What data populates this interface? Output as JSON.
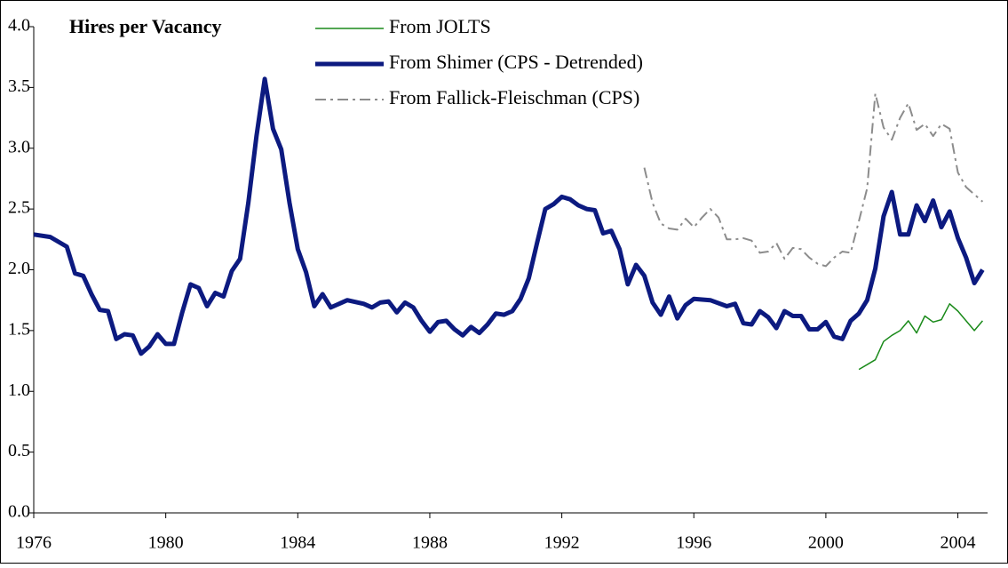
{
  "chart_data": {
    "type": "line",
    "title": "Hires per Vacancy",
    "xlim": [
      1976,
      2004.9
    ],
    "xticks": [
      1976,
      1980,
      1984,
      1988,
      1992,
      1996,
      2000,
      2004
    ],
    "ylim": [
      0,
      4
    ],
    "yticks": [
      {
        "value": 0,
        "label": "0.0"
      },
      {
        "value": 0.5,
        "label": "0.5"
      },
      {
        "value": 1,
        "label": "1.0"
      },
      {
        "value": 1.5,
        "label": "1.5"
      },
      {
        "value": 2,
        "label": "2.0"
      },
      {
        "value": 2.5,
        "label": "2.5"
      },
      {
        "value": 3,
        "label": "3.0"
      },
      {
        "value": 3.5,
        "label": "3.5"
      },
      {
        "value": 4,
        "label": "4.0"
      }
    ],
    "grid": false,
    "series": [
      {
        "name": "From JOLTS",
        "color": "#1a8a1a",
        "line_width": 1.5,
        "dash": "solid",
        "x": [
          2001.0,
          2001.25,
          2001.5,
          2001.75,
          2002.0,
          2002.25,
          2002.5,
          2002.75,
          2003.0,
          2003.25,
          2003.5,
          2003.75,
          2004.0,
          2004.25,
          2004.5,
          2004.75
        ],
        "values": [
          1.18,
          1.22,
          1.26,
          1.41,
          1.46,
          1.5,
          1.58,
          1.48,
          1.62,
          1.57,
          1.59,
          1.72,
          1.66,
          1.58,
          1.5,
          1.58
        ]
      },
      {
        "name": "From Shimer (CPS - Detrended)",
        "color": "#0c1a80",
        "line_width": 5,
        "dash": "solid",
        "x": [
          1976.0,
          1976.5,
          1977.0,
          1977.25,
          1977.5,
          1977.75,
          1978.0,
          1978.25,
          1978.5,
          1978.75,
          1979.0,
          1979.25,
          1979.5,
          1979.75,
          1980.0,
          1980.25,
          1980.5,
          1980.75,
          1981.0,
          1981.25,
          1981.5,
          1981.75,
          1982.0,
          1982.25,
          1982.5,
          1982.75,
          1983.0,
          1983.25,
          1983.5,
          1983.75,
          1984.0,
          1984.25,
          1984.5,
          1984.75,
          1985.0,
          1985.5,
          1986.0,
          1986.25,
          1986.5,
          1986.75,
          1987.0,
          1987.25,
          1987.5,
          1987.75,
          1988.0,
          1988.25,
          1988.5,
          1988.75,
          1989.0,
          1989.25,
          1989.5,
          1989.75,
          1990.0,
          1990.25,
          1990.5,
          1990.75,
          1991.0,
          1991.25,
          1991.5,
          1991.75,
          1992.0,
          1992.25,
          1992.5,
          1992.75,
          1993.0,
          1993.25,
          1993.5,
          1993.75,
          1994.0,
          1994.25,
          1994.5,
          1994.75,
          1995.0,
          1995.25,
          1995.5,
          1995.75,
          1996.0,
          1996.5,
          1997.0,
          1997.25,
          1997.5,
          1997.75,
          1998.0,
          1998.25,
          1998.5,
          1998.75,
          1999.0,
          1999.25,
          1999.5,
          1999.75,
          2000.0,
          2000.25,
          2000.5,
          2000.75,
          2001.0,
          2001.25,
          2001.5,
          2001.75,
          2002.0,
          2002.25,
          2002.5,
          2002.75,
          2003.0,
          2003.25,
          2003.5,
          2003.75,
          2004.0,
          2004.25,
          2004.5,
          2004.75
        ],
        "values": [
          2.29,
          2.27,
          2.19,
          1.97,
          1.95,
          1.8,
          1.67,
          1.66,
          1.43,
          1.47,
          1.46,
          1.31,
          1.37,
          1.47,
          1.39,
          1.39,
          1.65,
          1.88,
          1.85,
          1.7,
          1.81,
          1.78,
          1.99,
          2.09,
          2.55,
          3.1,
          3.57,
          3.16,
          2.99,
          2.55,
          2.17,
          1.98,
          1.7,
          1.8,
          1.69,
          1.75,
          1.72,
          1.69,
          1.73,
          1.74,
          1.65,
          1.73,
          1.69,
          1.58,
          1.49,
          1.57,
          1.58,
          1.51,
          1.46,
          1.53,
          1.48,
          1.55,
          1.64,
          1.63,
          1.66,
          1.76,
          1.93,
          2.22,
          2.5,
          2.54,
          2.6,
          2.58,
          2.53,
          2.5,
          2.49,
          2.3,
          2.32,
          2.17,
          1.88,
          2.04,
          1.95,
          1.73,
          1.63,
          1.78,
          1.6,
          1.71,
          1.76,
          1.75,
          1.7,
          1.72,
          1.56,
          1.55,
          1.66,
          1.61,
          1.52,
          1.66,
          1.62,
          1.62,
          1.51,
          1.51,
          1.57,
          1.45,
          1.43,
          1.58,
          1.64,
          1.75,
          2.01,
          2.44,
          2.64,
          2.29,
          2.29,
          2.53,
          2.4,
          2.57,
          2.35,
          2.48,
          2.26,
          2.1,
          1.89,
          2.0
        ]
      },
      {
        "name": "From Fallick-Fleischman (CPS)",
        "color": "#8c8c8c",
        "line_width": 2,
        "dash": "dash-dot",
        "x": [
          1994.5,
          1994.75,
          1995.0,
          1995.25,
          1995.5,
          1995.75,
          1996.0,
          1996.25,
          1996.5,
          1996.75,
          1997.0,
          1997.25,
          1997.5,
          1997.75,
          1998.0,
          1998.25,
          1998.5,
          1998.75,
          1999.0,
          1999.25,
          1999.5,
          1999.75,
          2000.0,
          2000.25,
          2000.5,
          2000.75,
          2001.0,
          2001.25,
          2001.5,
          2001.75,
          2002.0,
          2002.25,
          2002.5,
          2002.75,
          2003.0,
          2003.25,
          2003.5,
          2003.75,
          2004.0,
          2004.25,
          2004.5,
          2004.75
        ],
        "values": [
          2.84,
          2.55,
          2.38,
          2.34,
          2.33,
          2.42,
          2.35,
          2.43,
          2.5,
          2.43,
          2.25,
          2.25,
          2.26,
          2.24,
          2.14,
          2.15,
          2.22,
          2.09,
          2.18,
          2.17,
          2.1,
          2.05,
          2.03,
          2.1,
          2.15,
          2.14,
          2.4,
          2.67,
          3.45,
          3.17,
          3.07,
          3.25,
          3.37,
          3.15,
          3.2,
          3.1,
          3.2,
          3.16,
          2.8,
          2.68,
          2.62,
          2.56
        ]
      }
    ]
  }
}
